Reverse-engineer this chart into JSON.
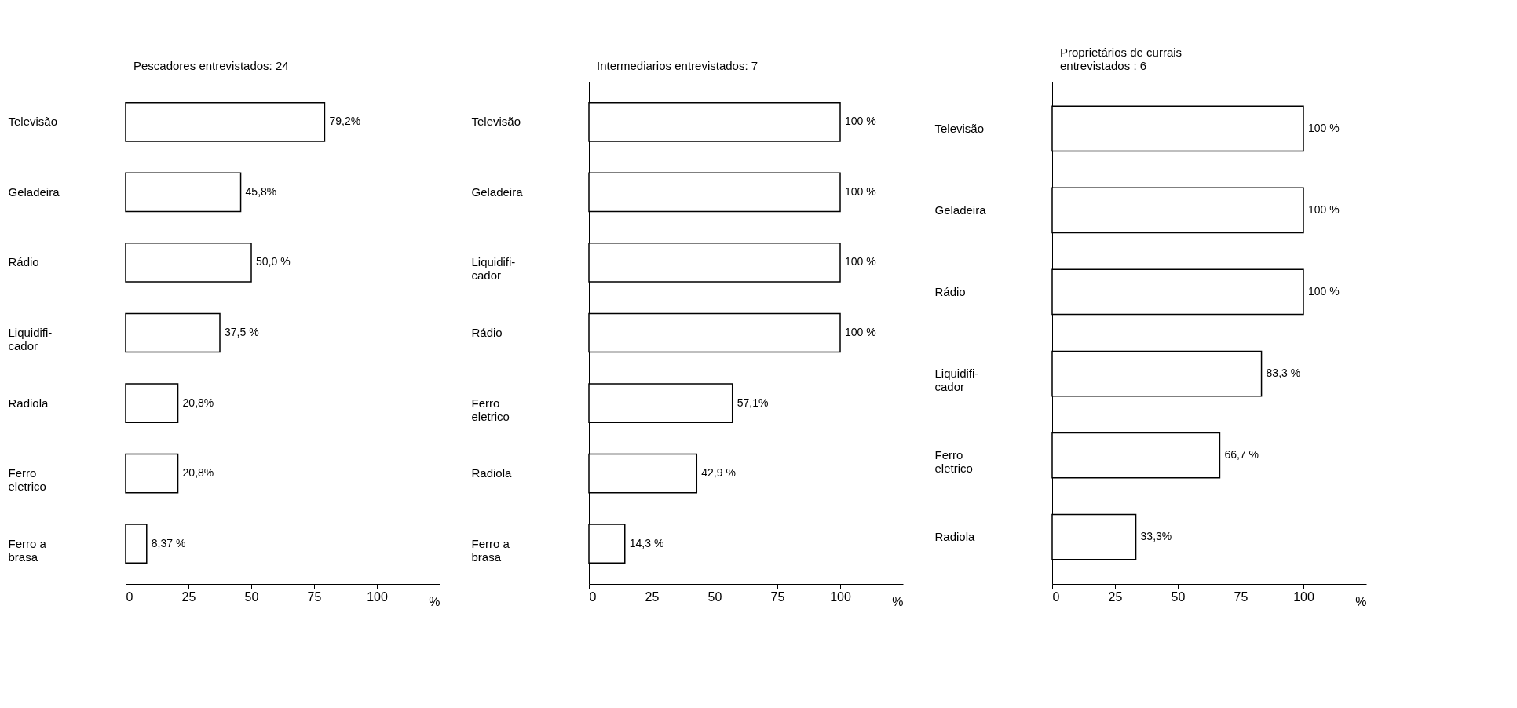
{
  "chart_data": [
    {
      "type": "bar",
      "orientation": "horizontal",
      "title": "Pescadores entrevistados: 24",
      "xlabel": "%",
      "categories": [
        "Televisão",
        "Geladeira",
        "Rádio",
        "Liquidifi-\ncador",
        "Radiola",
        "Ferro\neletrico",
        "Ferro a\nbrasa"
      ],
      "values": [
        79.2,
        45.8,
        50.0,
        37.5,
        20.8,
        20.8,
        8.37
      ],
      "value_labels": [
        "79,2%",
        "45,8%",
        "50,0 %",
        "37,5 %",
        "20,8%",
        "20,8%",
        "8,37 %"
      ],
      "color": "#ffffff",
      "xlim": [
        0,
        125
      ],
      "xticks": [
        0,
        25,
        50,
        75,
        100
      ],
      "grid": false
    },
    {
      "type": "bar",
      "orientation": "horizontal",
      "title": "Intermediarios entrevistados: 7",
      "xlabel": "%",
      "categories": [
        "Televisão",
        "Geladeira",
        "Liquidifi-\ncador",
        "Rádio",
        "Ferro\neletrico",
        "Radiola",
        "Ferro a\nbrasa"
      ],
      "values": [
        100,
        100,
        100,
        100,
        57.1,
        42.9,
        14.3
      ],
      "value_labels": [
        "100 %",
        "100 %",
        "100 %",
        "100 %",
        "57,1%",
        "42,9 %",
        "14,3 %"
      ],
      "color": "#ffffff",
      "xlim": [
        0,
        125
      ],
      "xticks": [
        0,
        25,
        50,
        75,
        100
      ],
      "grid": false
    },
    {
      "type": "bar",
      "orientation": "horizontal",
      "title": "Proprietários de currais\nentrevistados : 6",
      "xlabel": "%",
      "categories": [
        "Televisão",
        "Geladeira",
        "Rádio",
        "Liquidifi-\ncador",
        "Ferro\neletrico",
        "Radiola"
      ],
      "values": [
        100,
        100,
        100,
        83.3,
        66.7,
        33.3
      ],
      "value_labels": [
        "100 %",
        "100 %",
        "100 %",
        "83,3 %",
        "66,7 %",
        "33,3%"
      ],
      "color": "#ffffff",
      "xlim": [
        0,
        125
      ],
      "xticks": [
        0,
        25,
        50,
        75,
        100
      ],
      "grid": false
    }
  ]
}
